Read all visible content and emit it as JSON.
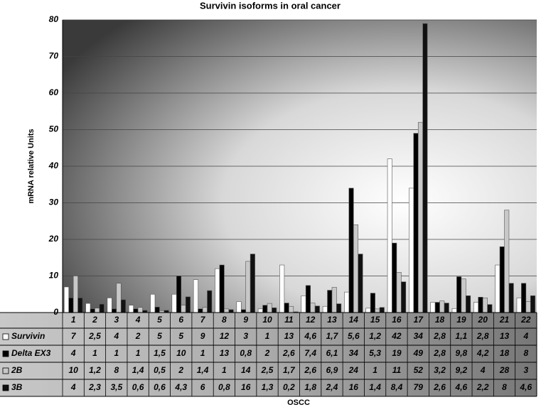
{
  "chart_data": {
    "type": "bar",
    "title": "Survivin isoforms in oral cancer",
    "y_label": "mRNA relative Units",
    "x_label": "OSCC",
    "categories": [
      "1",
      "2",
      "3",
      "4",
      "5",
      "6",
      "7",
      "8",
      "9",
      "10",
      "11",
      "12",
      "13",
      "14",
      "15",
      "16",
      "17",
      "18",
      "19",
      "20",
      "21",
      "22"
    ],
    "ylim": [
      0,
      80
    ],
    "yticks": [
      0,
      10,
      20,
      30,
      40,
      50,
      60,
      70,
      80
    ],
    "grid": true,
    "series": [
      {
        "name": "Survivin",
        "color": "#ffffff",
        "values": [
          7,
          2.5,
          4,
          2,
          5,
          5,
          9,
          12,
          3,
          1,
          13,
          4.6,
          1.7,
          5.6,
          1.2,
          42,
          34,
          2.8,
          1.1,
          2.8,
          13,
          4
        ],
        "value_labels": [
          "7",
          "2,5",
          "4",
          "2",
          "5",
          "5",
          "9",
          "12",
          "3",
          "1",
          "13",
          "4,6",
          "1,7",
          "5,6",
          "1,2",
          "42",
          "34",
          "2,8",
          "1,1",
          "2,8",
          "13",
          "4"
        ]
      },
      {
        "name": "Delta EX3",
        "color": "#000000",
        "values": [
          4,
          1,
          1,
          1,
          1.5,
          10,
          1,
          13,
          0.8,
          2,
          2.6,
          7.4,
          6.1,
          34,
          5.3,
          19,
          49,
          2.8,
          9.8,
          4.2,
          18,
          8
        ],
        "value_labels": [
          "4",
          "1",
          "1",
          "1",
          "1,5",
          "10",
          "1",
          "13",
          "0,8",
          "2",
          "2,6",
          "7,4",
          "6,1",
          "34",
          "5,3",
          "19",
          "49",
          "2,8",
          "9,8",
          "4,2",
          "18",
          "8"
        ]
      },
      {
        "name": "2B",
        "color": "#c8c8c8",
        "values": [
          10,
          1.2,
          8,
          1.4,
          0.5,
          2,
          1.4,
          1,
          14,
          2.5,
          1.7,
          2.6,
          6.9,
          24,
          1,
          11,
          52,
          3.2,
          9.2,
          4,
          28,
          3
        ],
        "value_labels": [
          "10",
          "1,2",
          "8",
          "1,4",
          "0,5",
          "2",
          "1,4",
          "1",
          "14",
          "2,5",
          "1,7",
          "2,6",
          "6,9",
          "24",
          "1",
          "11",
          "52",
          "3,2",
          "9,2",
          "4",
          "28",
          "3"
        ]
      },
      {
        "name": "3B",
        "color": "#111111",
        "values": [
          4,
          2.3,
          3.5,
          0.6,
          0.6,
          4.3,
          6,
          0.8,
          16,
          1.3,
          0.2,
          1.8,
          2.4,
          16,
          1.4,
          8.4,
          79,
          2.6,
          4.6,
          2.2,
          8,
          4.6
        ],
        "value_labels": [
          "4",
          "2,3",
          "3,5",
          "0,6",
          "0,6",
          "4,3",
          "6",
          "0,8",
          "16",
          "1,3",
          "0,2",
          "1,8",
          "2,4",
          "16",
          "1,4",
          "8,4",
          "79",
          "2,6",
          "4,6",
          "2,2",
          "8",
          "4,6"
        ]
      }
    ]
  }
}
